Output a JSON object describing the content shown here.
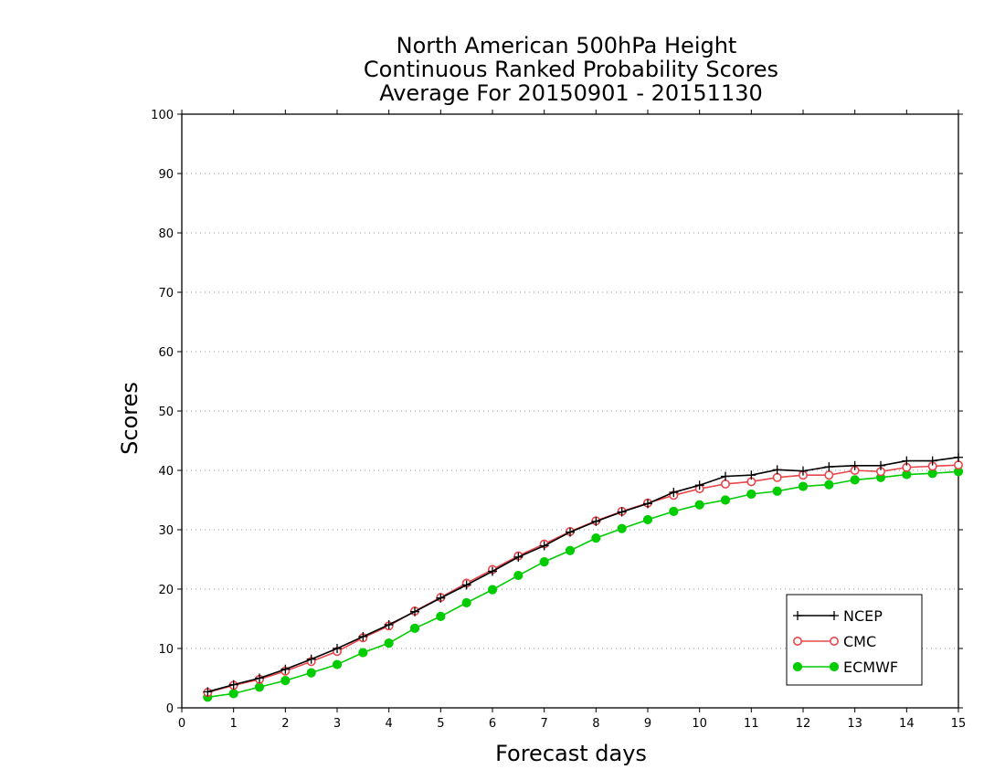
{
  "chart_data": {
    "type": "line",
    "title_lines": [
      "North American 500hPa Height",
      "Continuous Ranked Probability Scores",
      "Average For 20150901 - 20151130"
    ],
    "xlabel": "Forecast days",
    "ylabel": "Scores",
    "xlim": [
      0,
      15
    ],
    "ylim": [
      0,
      100
    ],
    "xticks": [
      0,
      1,
      2,
      3,
      4,
      5,
      6,
      7,
      8,
      9,
      10,
      11,
      12,
      13,
      14,
      15
    ],
    "yticks": [
      0,
      10,
      20,
      30,
      40,
      50,
      60,
      70,
      80,
      90,
      100
    ],
    "grid": "dotted horizontal",
    "legend_position": "bottom-right",
    "x": [
      0.5,
      1,
      1.5,
      2,
      2.5,
      3,
      3.5,
      4,
      4.5,
      5,
      5.5,
      6,
      6.5,
      7,
      7.5,
      8,
      8.5,
      9,
      9.5,
      10,
      10.5,
      11,
      11.5,
      12,
      12.5,
      13,
      13.5,
      14,
      14.5,
      15
    ],
    "series": [
      {
        "name": "NCEP",
        "color": "#000000",
        "marker": "plus",
        "values": [
          2.7,
          3.9,
          5.0,
          6.5,
          8.2,
          10.0,
          12.0,
          14.0,
          16.2,
          18.5,
          20.7,
          23.0,
          25.4,
          27.3,
          29.6,
          31.4,
          33.0,
          34.4,
          36.3,
          37.5,
          39.0,
          39.2,
          40.1,
          39.9,
          40.6,
          40.8,
          40.8,
          41.6,
          41.6,
          42.2
        ]
      },
      {
        "name": "CMC",
        "color": "#e8464a",
        "marker": "open-circle",
        "values": [
          2.6,
          3.8,
          4.8,
          6.2,
          7.8,
          9.5,
          11.8,
          13.8,
          16.3,
          18.6,
          21.0,
          23.3,
          25.6,
          27.6,
          29.7,
          31.5,
          33.1,
          34.5,
          35.8,
          36.9,
          37.7,
          38.1,
          38.8,
          39.2,
          39.2,
          40.0,
          39.8,
          40.5,
          40.7,
          40.9
        ]
      },
      {
        "name": "ECMWF",
        "color": "#00cc00",
        "marker": "filled-circle",
        "values": [
          1.8,
          2.4,
          3.5,
          4.6,
          5.9,
          7.3,
          9.3,
          10.9,
          13.4,
          15.4,
          17.7,
          19.9,
          22.3,
          24.6,
          26.5,
          28.6,
          30.2,
          31.7,
          33.1,
          34.2,
          35.0,
          36.0,
          36.5,
          37.3,
          37.6,
          38.4,
          38.8,
          39.3,
          39.5,
          39.8
        ]
      }
    ]
  }
}
